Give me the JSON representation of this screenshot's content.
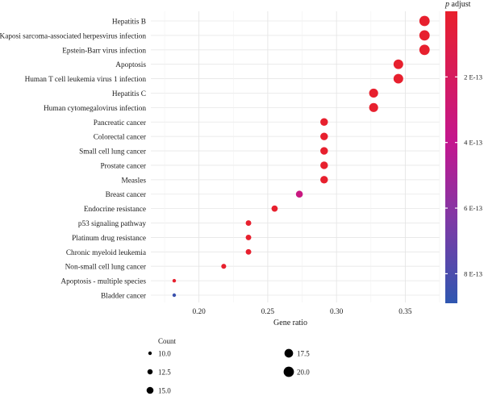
{
  "chart_data": {
    "type": "scatter",
    "title": "",
    "xlabel": "Gene ratio",
    "ylabel": "",
    "xlim": [
      0.165,
      0.375
    ],
    "x_ticks": [
      0.2,
      0.25,
      0.3,
      0.35
    ],
    "x_tick_labels": [
      "0.20",
      "0.25",
      "0.30",
      "0.35"
    ],
    "grid": true,
    "categories": [
      "Hepatitis B",
      "Kaposi sarcoma-associated herpesvirus infection",
      "Epstein-Barr virus infection",
      "Apoptosis",
      "Human T cell leukemia virus 1 infection",
      "Hepatitis C",
      "Human cytomegalovirus infection",
      "Pancreatic cancer",
      "Colorectal cancer",
      "Small cell lung cancer",
      "Prostate cancer",
      "Measles",
      "Breast cancer",
      "Endocrine resistance",
      "p53 signaling pathway",
      "Platinum drug resistance",
      "Chronic myeloid leukemia",
      "Non-small cell lung cancer",
      "Apoptosis - multiple species",
      "Bladder cancer"
    ],
    "x": [
      0.364,
      0.364,
      0.364,
      0.345,
      0.345,
      0.327,
      0.327,
      0.291,
      0.291,
      0.291,
      0.291,
      0.291,
      0.273,
      0.255,
      0.236,
      0.236,
      0.236,
      0.218,
      0.182,
      0.182
    ],
    "count": [
      20,
      20,
      20,
      19,
      19,
      18,
      18,
      16,
      16,
      16,
      16,
      16,
      15,
      14,
      13,
      13,
      13,
      12,
      10,
      10
    ],
    "p_adjust": [
      1e-14,
      1e-14,
      1e-14,
      1e-14,
      1e-14,
      1e-14,
      1e-14,
      1e-14,
      1e-14,
      1e-14,
      1e-14,
      1e-14,
      3.4e-13,
      1e-14,
      1e-14,
      1e-14,
      1e-14,
      1e-14,
      1e-14,
      8.5e-13
    ],
    "color_legend": {
      "title": "p adjust",
      "ticks": [
        2e-13,
        4e-13,
        6e-13,
        8e-13
      ],
      "tick_labels": [
        "2 E-13",
        "4 E-13",
        "6 E-13",
        "8 E-13"
      ],
      "range": [
        0,
        8.9e-13
      ],
      "color_low": "#e8202c",
      "color_mid": "#c3168f",
      "color_high": "#2f57b0",
      "placement": "right"
    },
    "size_legend": {
      "title": "Count",
      "values": [
        10.0,
        12.5,
        15.0,
        17.5,
        20.0
      ],
      "labels": [
        "10.0",
        "12.5",
        "15.0",
        "17.5",
        "20.0"
      ],
      "placement": "bottom"
    }
  }
}
